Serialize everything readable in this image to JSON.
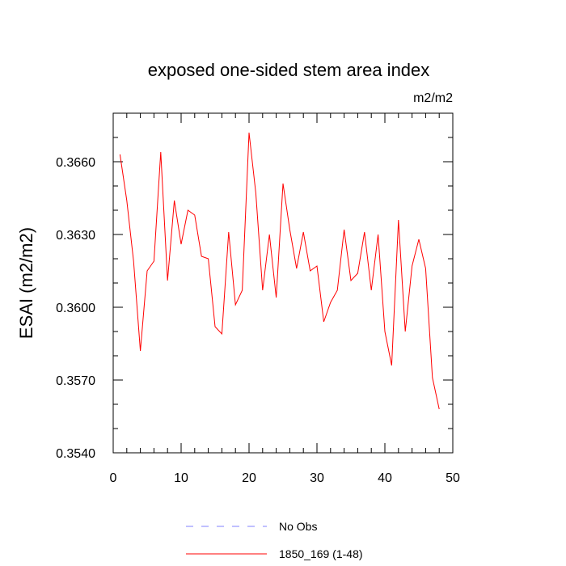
{
  "chart_data": {
    "type": "line",
    "title": "exposed one-sided stem area index",
    "units": "m2/m2",
    "xlabel": "",
    "ylabel": "ESAI  (m2/m2)",
    "xlim": [
      0,
      50
    ],
    "ylim": [
      0.354,
      0.368
    ],
    "x_ticks": [
      0,
      10,
      20,
      30,
      40,
      50
    ],
    "x_tick_labels": [
      "0",
      "10",
      "20",
      "30",
      "40",
      "50"
    ],
    "y_ticks": [
      0.354,
      0.357,
      0.36,
      0.363,
      0.366
    ],
    "y_tick_labels": [
      "0.3540",
      "0.3570",
      "0.3600",
      "0.3630",
      "0.3660"
    ],
    "grid": false,
    "legend": {
      "placement": "bottom-center",
      "entries": [
        {
          "label": "No Obs",
          "color": "#8080ff",
          "style": "dashed"
        },
        {
          "label": "1850_169 (1-48)",
          "color": "#ff0000",
          "style": "solid"
        }
      ]
    },
    "series": [
      {
        "name": "1850_169 (1-48)",
        "color": "#ff0000",
        "x": [
          1,
          2,
          3,
          4,
          5,
          6,
          7,
          8,
          9,
          10,
          11,
          12,
          13,
          14,
          15,
          16,
          17,
          18,
          19,
          20,
          21,
          22,
          23,
          24,
          25,
          26,
          27,
          28,
          29,
          30,
          31,
          32,
          33,
          34,
          35,
          36,
          37,
          38,
          39,
          40,
          41,
          42,
          43,
          44,
          45,
          46,
          47,
          48
        ],
        "values": [
          0.3663,
          0.3644,
          0.3619,
          0.3582,
          0.3615,
          0.3619,
          0.3664,
          0.3611,
          0.3644,
          0.3626,
          0.364,
          0.3638,
          0.3621,
          0.362,
          0.3592,
          0.3589,
          0.3631,
          0.3601,
          0.3607,
          0.3672,
          0.3647,
          0.3607,
          0.363,
          0.3604,
          0.3651,
          0.3632,
          0.3616,
          0.3631,
          0.3615,
          0.3617,
          0.3594,
          0.3602,
          0.3607,
          0.3632,
          0.3611,
          0.3614,
          0.3631,
          0.3607,
          0.363,
          0.359,
          0.3576,
          0.3636,
          0.359,
          0.3617,
          0.3628,
          0.3616,
          0.3571,
          0.3558
        ]
      }
    ]
  }
}
